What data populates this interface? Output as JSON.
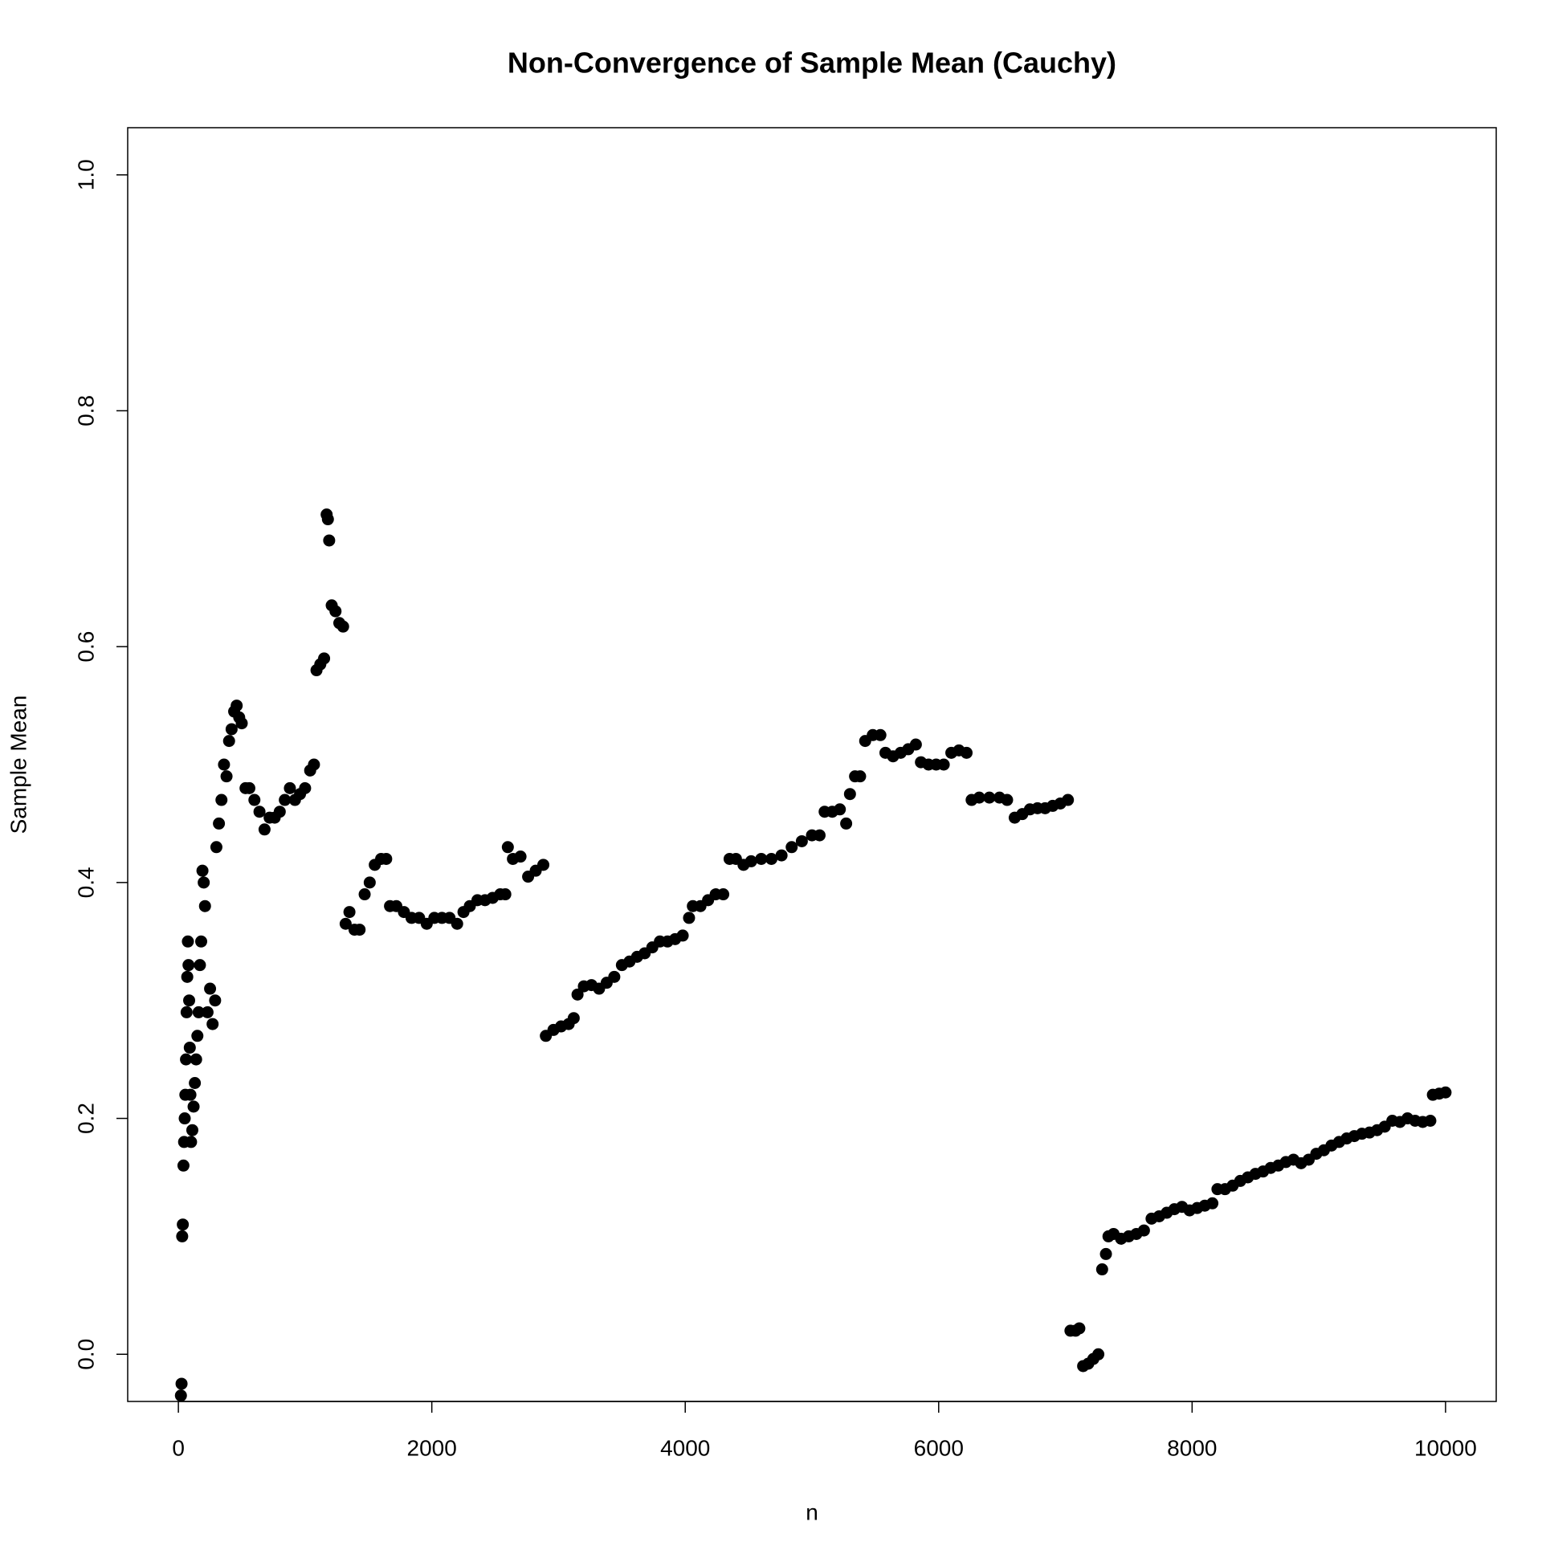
{
  "chart_data": {
    "type": "scatter",
    "title": "Non-Convergence of Sample Mean (Cauchy)",
    "x_label": "n",
    "y_label": "Sample Mean",
    "color": "#000000",
    "xlim": [
      -400,
      10400
    ],
    "ylim": [
      -0.04,
      1.04
    ],
    "xticks": [
      0,
      2000,
      4000,
      6000,
      8000,
      10000
    ],
    "yticks": [
      {
        "value": 0,
        "label": "0.0"
      },
      0.2,
      0.4,
      0.6,
      0.8,
      {
        "value": 1,
        "label": "1.0"
      }
    ],
    "x": [
      20,
      25,
      30,
      35,
      40,
      45,
      50,
      55,
      60,
      65,
      70,
      75,
      80,
      85,
      90,
      95,
      100,
      110,
      120,
      130,
      140,
      150,
      160,
      170,
      180,
      190,
      200,
      210,
      230,
      250,
      270,
      290,
      300,
      320,
      340,
      360,
      380,
      400,
      420,
      440,
      460,
      480,
      500,
      530,
      560,
      600,
      640,
      680,
      720,
      760,
      800,
      840,
      880,
      920,
      960,
      1000,
      1040,
      1070,
      1090,
      1120,
      1150,
      1170,
      1180,
      1190,
      1210,
      1240,
      1270,
      1300,
      1320,
      1350,
      1390,
      1430,
      1470,
      1510,
      1550,
      1600,
      1640,
      1670,
      1720,
      1780,
      1840,
      1900,
      1960,
      2020,
      2080,
      2140,
      2200,
      2250,
      2300,
      2360,
      2420,
      2480,
      2540,
      2580,
      2600,
      2640,
      2700,
      2760,
      2820,
      2880,
      2900,
      2960,
      3020,
      3080,
      3120,
      3150,
      3200,
      3260,
      3320,
      3380,
      3440,
      3500,
      3560,
      3620,
      3680,
      3740,
      3800,
      3860,
      3920,
      3980,
      4030,
      4060,
      4120,
      4180,
      4240,
      4300,
      4350,
      4400,
      4460,
      4520,
      4600,
      4680,
      4760,
      4840,
      4920,
      5000,
      5060,
      5100,
      5160,
      5220,
      5270,
      5300,
      5340,
      5380,
      5420,
      5480,
      5540,
      5580,
      5640,
      5700,
      5760,
      5820,
      5860,
      5920,
      5980,
      6040,
      6100,
      6160,
      6220,
      6260,
      6320,
      6400,
      6480,
      6540,
      6600,
      6660,
      6720,
      6780,
      6840,
      6900,
      6960,
      7020,
      7040,
      7080,
      7110,
      7140,
      7180,
      7220,
      7260,
      7290,
      7320,
      7340,
      7380,
      7440,
      7500,
      7560,
      7620,
      7680,
      7740,
      7800,
      7860,
      7920,
      7980,
      8040,
      8100,
      8160,
      8200,
      8260,
      8320,
      8380,
      8440,
      8500,
      8560,
      8620,
      8680,
      8740,
      8800,
      8860,
      8920,
      8980,
      9040,
      9100,
      9160,
      9220,
      9280,
      9340,
      9400,
      9460,
      9520,
      9580,
      9640,
      9700,
      9760,
      9820,
      9880,
      9900,
      9950,
      10000
    ],
    "values": [
      -0.035,
      -0.025,
      0.1,
      0.11,
      0.16,
      0.18,
      0.2,
      0.22,
      0.25,
      0.29,
      0.32,
      0.35,
      0.33,
      0.3,
      0.26,
      0.22,
      0.18,
      0.19,
      0.21,
      0.23,
      0.25,
      0.27,
      0.29,
      0.33,
      0.35,
      0.41,
      0.4,
      0.38,
      0.29,
      0.31,
      0.28,
      0.3,
      0.43,
      0.45,
      0.47,
      0.5,
      0.49,
      0.52,
      0.53,
      0.545,
      0.55,
      0.54,
      0.535,
      0.48,
      0.48,
      0.47,
      0.46,
      0.445,
      0.455,
      0.455,
      0.46,
      0.47,
      0.48,
      0.47,
      0.475,
      0.48,
      0.495,
      0.5,
      0.58,
      0.585,
      0.59,
      0.712,
      0.708,
      0.69,
      0.635,
      0.63,
      0.62,
      0.617,
      0.365,
      0.375,
      0.36,
      0.36,
      0.39,
      0.4,
      0.415,
      0.42,
      0.42,
      0.38,
      0.38,
      0.375,
      0.37,
      0.37,
      0.365,
      0.37,
      0.37,
      0.37,
      0.365,
      0.375,
      0.38,
      0.385,
      0.385,
      0.387,
      0.39,
      0.39,
      0.43,
      0.42,
      0.422,
      0.405,
      0.41,
      0.415,
      0.27,
      0.275,
      0.278,
      0.28,
      0.285,
      0.305,
      0.312,
      0.313,
      0.31,
      0.315,
      0.32,
      0.33,
      0.333,
      0.337,
      0.34,
      0.345,
      0.35,
      0.35,
      0.352,
      0.355,
      0.37,
      0.38,
      0.38,
      0.385,
      0.39,
      0.39,
      0.42,
      0.42,
      0.415,
      0.418,
      0.42,
      0.42,
      0.423,
      0.43,
      0.435,
      0.44,
      0.44,
      0.46,
      0.46,
      0.462,
      0.45,
      0.475,
      0.49,
      0.49,
      0.52,
      0.525,
      0.525,
      0.51,
      0.507,
      0.51,
      0.513,
      0.517,
      0.502,
      0.5,
      0.5,
      0.5,
      0.51,
      0.512,
      0.51,
      0.47,
      0.472,
      0.472,
      0.472,
      0.47,
      0.455,
      0.458,
      0.462,
      0.463,
      0.463,
      0.465,
      0.467,
      0.47,
      0.02,
      0.02,
      0.022,
      -0.01,
      -0.008,
      -0.004,
      0.0,
      0.072,
      0.085,
      0.1,
      0.102,
      0.098,
      0.1,
      0.102,
      0.105,
      0.115,
      0.117,
      0.12,
      0.123,
      0.125,
      0.122,
      0.124,
      0.126,
      0.128,
      0.14,
      0.14,
      0.143,
      0.147,
      0.15,
      0.153,
      0.155,
      0.158,
      0.16,
      0.163,
      0.165,
      0.162,
      0.165,
      0.17,
      0.173,
      0.177,
      0.18,
      0.183,
      0.185,
      0.187,
      0.188,
      0.19,
      0.193,
      0.198,
      0.197,
      0.2,
      0.198,
      0.197,
      0.198,
      0.22,
      0.221,
      0.222
    ]
  }
}
